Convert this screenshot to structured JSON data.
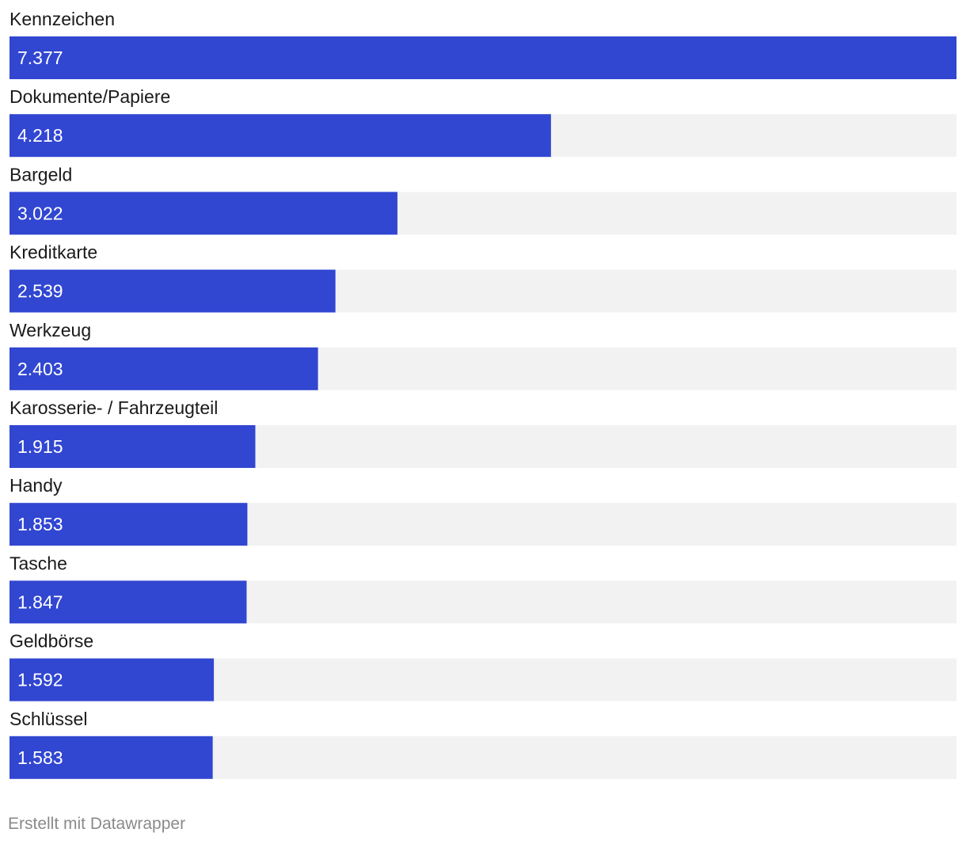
{
  "chart_data": {
    "type": "bar",
    "orientation": "horizontal",
    "categories": [
      "Kennzeichen",
      "Dokumente/Papiere",
      "Bargeld",
      "Kreditkarte",
      "Werkzeug",
      "Karosserie- / Fahrzeugteil",
      "Handy",
      "Tasche",
      "Geldbörse",
      "Schlüssel"
    ],
    "values": [
      7377,
      4218,
      3022,
      2539,
      2403,
      1915,
      1853,
      1847,
      1592,
      1583
    ],
    "value_labels": [
      "7.377",
      "4.218",
      "3.022",
      "2.539",
      "2.403",
      "1.915",
      "1.853",
      "1.847",
      "1.592",
      "1.583"
    ],
    "xlim": [
      0,
      7377
    ],
    "title": "",
    "xlabel": "",
    "ylabel": "",
    "grid": false,
    "legend": "none",
    "colors": {
      "bar": "#3146d1",
      "track": "#f2f2f2"
    }
  },
  "footer": {
    "credit": "Erstellt mit Datawrapper"
  }
}
